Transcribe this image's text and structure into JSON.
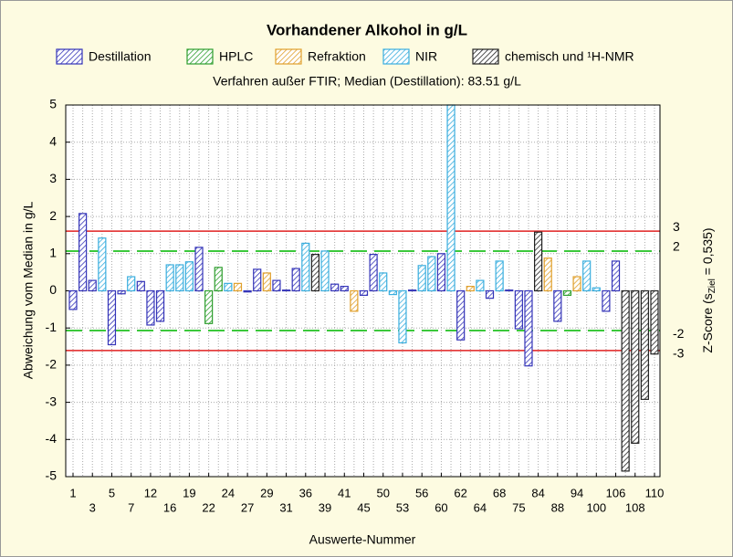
{
  "chart_data": {
    "type": "bar",
    "title": "Vorhandener Alkohol in g/L",
    "subtitle": "Verfahren außer FTIR; Median (Destillation): 83.51 g/L",
    "xlabel": "Auswerte-Nummer",
    "ylabel": "Abweichung vom Median in g/L",
    "y2label": [
      "Z-Score (s",
      "Ziel",
      " = 0,535)"
    ],
    "categories": [
      "1",
      null,
      "3",
      null,
      "5",
      null,
      "7",
      null,
      "12",
      null,
      "16",
      null,
      "19",
      null,
      "22",
      null,
      "24",
      null,
      "27",
      null,
      "29",
      null,
      "31",
      null,
      "36",
      null,
      "39",
      null,
      "41",
      null,
      "45",
      null,
      "50",
      null,
      "53",
      null,
      "56",
      null,
      "60",
      null,
      "62",
      null,
      "64",
      null,
      "68",
      null,
      "75",
      null,
      "84",
      null,
      "88",
      null,
      "94",
      null,
      "100",
      null,
      "106",
      null,
      "108",
      null,
      "110"
    ],
    "series": [
      {
        "name": "Destillation",
        "color": "#3434b8",
        "values": [
          -0.5,
          2.08,
          0.28,
          null,
          -1.45,
          -0.08,
          null,
          0.25,
          -0.92,
          -0.82,
          null,
          null,
          null,
          1.17,
          null,
          null,
          null,
          null,
          -0.03,
          0.58,
          null,
          0.28,
          0.02,
          0.6,
          null,
          null,
          null,
          0.18,
          0.12,
          null,
          -0.12,
          0.98,
          null,
          null,
          null,
          0.02,
          null,
          null,
          1.0,
          null,
          -1.32,
          null,
          null,
          -0.2,
          null,
          0.02,
          -1.02,
          -2.02,
          null,
          null,
          -0.82,
          null,
          null,
          null,
          null,
          -0.55,
          0.8,
          null,
          null,
          null,
          null
        ]
      },
      {
        "name": "HPLC",
        "color": "#2e9e2e",
        "values": [
          null,
          null,
          null,
          null,
          null,
          null,
          null,
          null,
          null,
          null,
          null,
          null,
          null,
          null,
          -0.88,
          0.63,
          null,
          null,
          null,
          null,
          null,
          null,
          null,
          null,
          null,
          null,
          null,
          null,
          null,
          null,
          null,
          null,
          null,
          null,
          null,
          null,
          null,
          null,
          null,
          null,
          null,
          null,
          null,
          null,
          null,
          null,
          null,
          null,
          null,
          null,
          null,
          -0.12,
          null,
          null,
          null,
          null,
          null,
          null,
          null,
          null,
          null
        ]
      },
      {
        "name": "Refraktion",
        "color": "#e0a02c",
        "values": [
          null,
          null,
          null,
          null,
          null,
          null,
          null,
          null,
          null,
          null,
          null,
          null,
          null,
          null,
          null,
          null,
          null,
          0.2,
          null,
          null,
          0.48,
          null,
          null,
          null,
          null,
          null,
          null,
          null,
          null,
          -0.55,
          null,
          null,
          null,
          null,
          null,
          null,
          null,
          null,
          null,
          null,
          null,
          0.12,
          null,
          null,
          null,
          null,
          null,
          null,
          null,
          0.88,
          null,
          null,
          0.38,
          null,
          null,
          null,
          null,
          null,
          null,
          null,
          null
        ]
      },
      {
        "name": "NIR",
        "color": "#3aaede",
        "values": [
          null,
          null,
          null,
          1.42,
          null,
          null,
          0.38,
          null,
          null,
          null,
          0.7,
          0.7,
          0.78,
          null,
          null,
          null,
          0.2,
          null,
          null,
          null,
          null,
          null,
          null,
          null,
          1.28,
          null,
          1.07,
          null,
          null,
          null,
          null,
          null,
          0.48,
          -0.1,
          -1.4,
          null,
          0.68,
          0.92,
          null,
          5,
          null,
          null,
          0.28,
          null,
          0.8,
          null,
          null,
          null,
          null,
          null,
          null,
          null,
          null,
          0.8,
          0.08,
          null,
          null,
          null,
          null,
          null,
          null
        ]
      },
      {
        "name": "chemisch und ¹H-NMR",
        "color": "#222222",
        "values": [
          null,
          null,
          null,
          null,
          null,
          null,
          null,
          null,
          null,
          null,
          null,
          null,
          null,
          null,
          null,
          null,
          null,
          null,
          null,
          null,
          null,
          null,
          null,
          null,
          null,
          0.98,
          null,
          null,
          null,
          null,
          null,
          null,
          null,
          null,
          null,
          null,
          null,
          null,
          null,
          null,
          null,
          null,
          null,
          null,
          null,
          null,
          null,
          null,
          1.58,
          null,
          null,
          null,
          null,
          null,
          null,
          null,
          null,
          -4.85,
          -4.1,
          -2.92,
          -1.7
        ]
      }
    ],
    "ylim": [
      -5,
      5
    ],
    "yticks": [
      -5,
      -4,
      -3,
      -2,
      -1,
      0,
      1,
      2,
      3,
      4,
      5
    ],
    "y2lim": [
      -9.346,
      9.346
    ],
    "y2ticks": [
      -3,
      -2,
      2,
      3
    ],
    "y2tick_line_colors": [
      "#e02020",
      "#3cc83c",
      "#3cc83c",
      "#e02020"
    ],
    "y2tick_line_styles": [
      "solid",
      "dashed",
      "dashed",
      "solid"
    ],
    "grid": true,
    "legend": "top"
  }
}
